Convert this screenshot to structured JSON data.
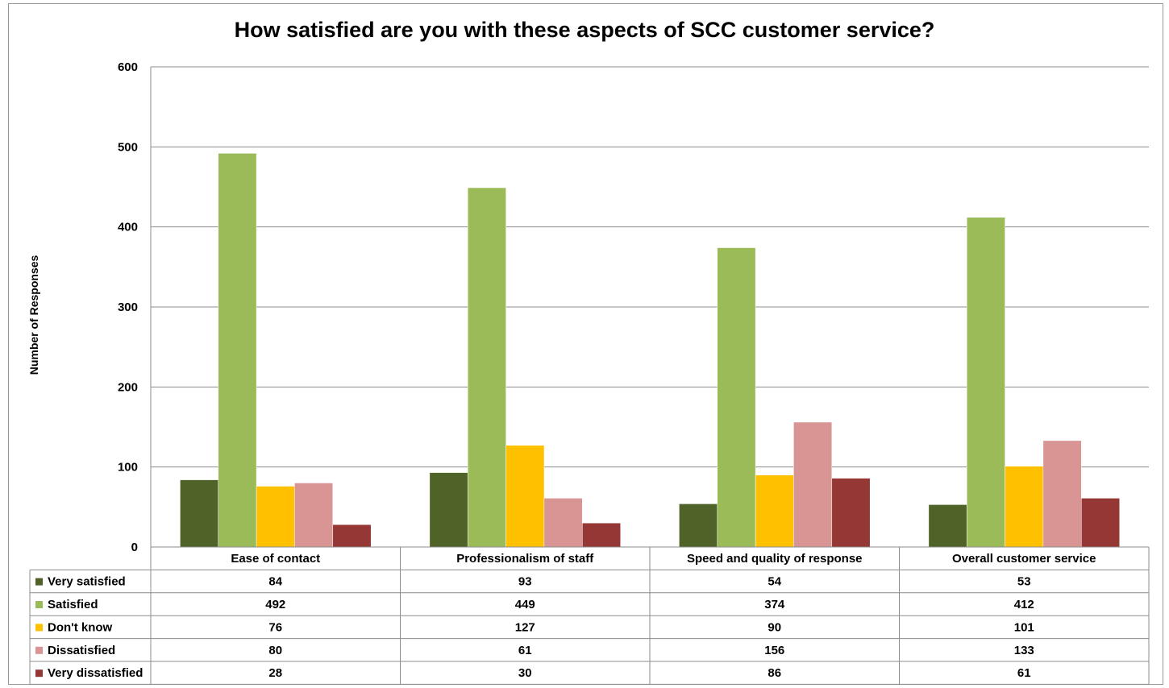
{
  "chart_data": {
    "type": "bar",
    "title": "How satisfied are you with these aspects of SCC customer service?",
    "xlabel": "",
    "ylabel": "Number of Responses",
    "ylim": [
      0,
      600
    ],
    "yticks": [
      "0",
      "100",
      "200",
      "300",
      "400",
      "500",
      "600"
    ],
    "grid": true,
    "legend_placement": "data table (left of rows)",
    "categories": [
      "Ease of contact",
      "Professionalism of staff",
      "Speed and quality of response",
      "Overall customer service"
    ],
    "series": [
      {
        "name": "Very satisfied",
        "color": "#4F6228",
        "values": [
          84,
          93,
          54,
          53
        ]
      },
      {
        "name": "Satisfied",
        "color": "#9BBB59",
        "values": [
          492,
          449,
          374,
          412
        ]
      },
      {
        "name": "Don't know",
        "color": "#FFC000",
        "values": [
          76,
          127,
          90,
          101
        ]
      },
      {
        "name": "Dissatisfied",
        "color": "#D99594",
        "values": [
          80,
          61,
          156,
          133
        ]
      },
      {
        "name": "Very dissatisfied",
        "color": "#953735",
        "values": [
          28,
          30,
          86,
          61
        ]
      }
    ]
  }
}
